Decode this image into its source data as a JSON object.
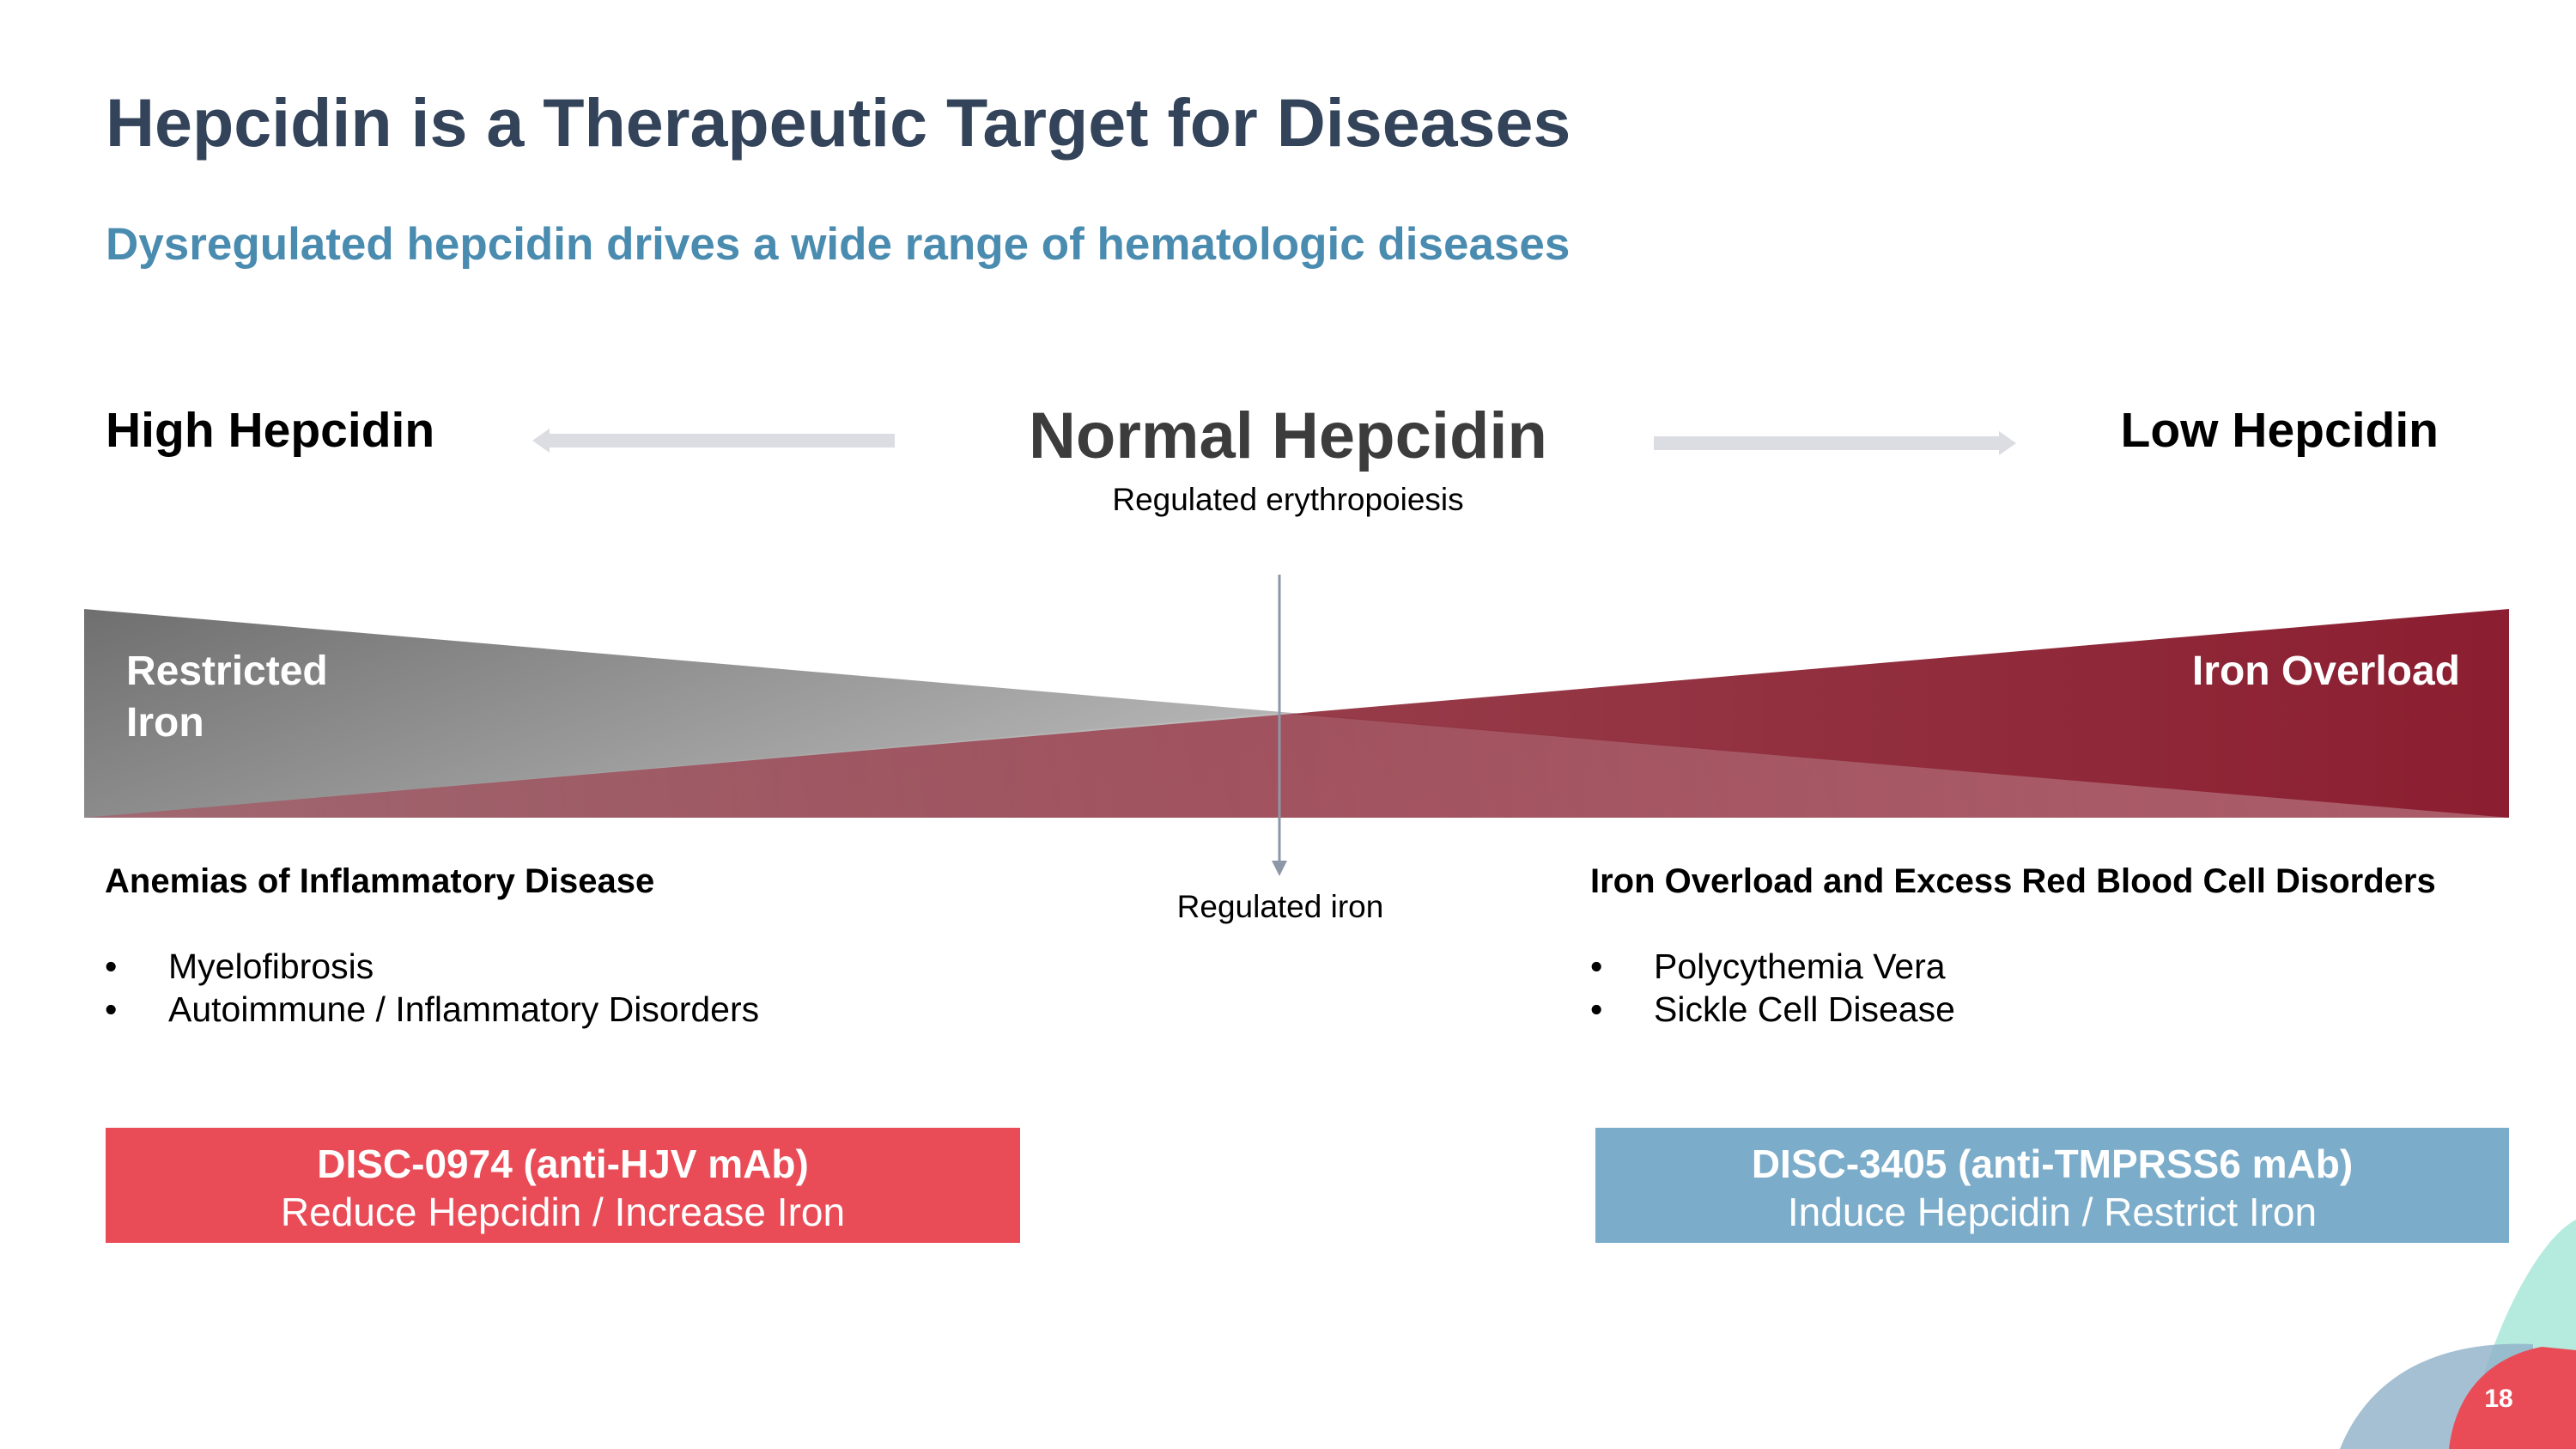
{
  "title": "Hepcidin is a Therapeutic Target for Diseases",
  "subtitle": "Dysregulated hepcidin drives a wide range of hematologic diseases",
  "scale": {
    "left_label": "High Hepcidin",
    "center_label": "Normal Hepcidin",
    "center_sublabel": "Regulated erythropoiesis",
    "right_label": "Low Hepcidin",
    "center_pointer_label": "Regulated iron",
    "left_triangle_label_line1": "Restricted",
    "left_triangle_label_line2": "Iron",
    "right_triangle_label": "Iron Overload"
  },
  "left_group": {
    "heading": "Anemias of Inflammatory Disease",
    "items": [
      "Myelofibrosis",
      "Autoimmune / Inflammatory Disorders"
    ]
  },
  "right_group": {
    "heading": "Iron Overload and Excess Red Blood Cell Disorders",
    "items": [
      "Polycythemia Vera",
      "Sickle Cell Disease"
    ]
  },
  "left_drug": {
    "name": "DISC-0974 (anti-HJV mAb)",
    "description": "Reduce Hepcidin / Increase Iron",
    "color": "#e94c57"
  },
  "right_drug": {
    "name": "DISC-3405 (anti-TMPRSS6 mAb)",
    "description": "Induce Hepcidin / Restrict Iron",
    "color": "#7bacca"
  },
  "bullet_glyph": "•",
  "page_number": "18",
  "colors": {
    "title": "#33435a",
    "subtitle": "#4a8bb0",
    "iron_overload": "#8b1e30",
    "restricted_iron": "#7a7a7a"
  }
}
